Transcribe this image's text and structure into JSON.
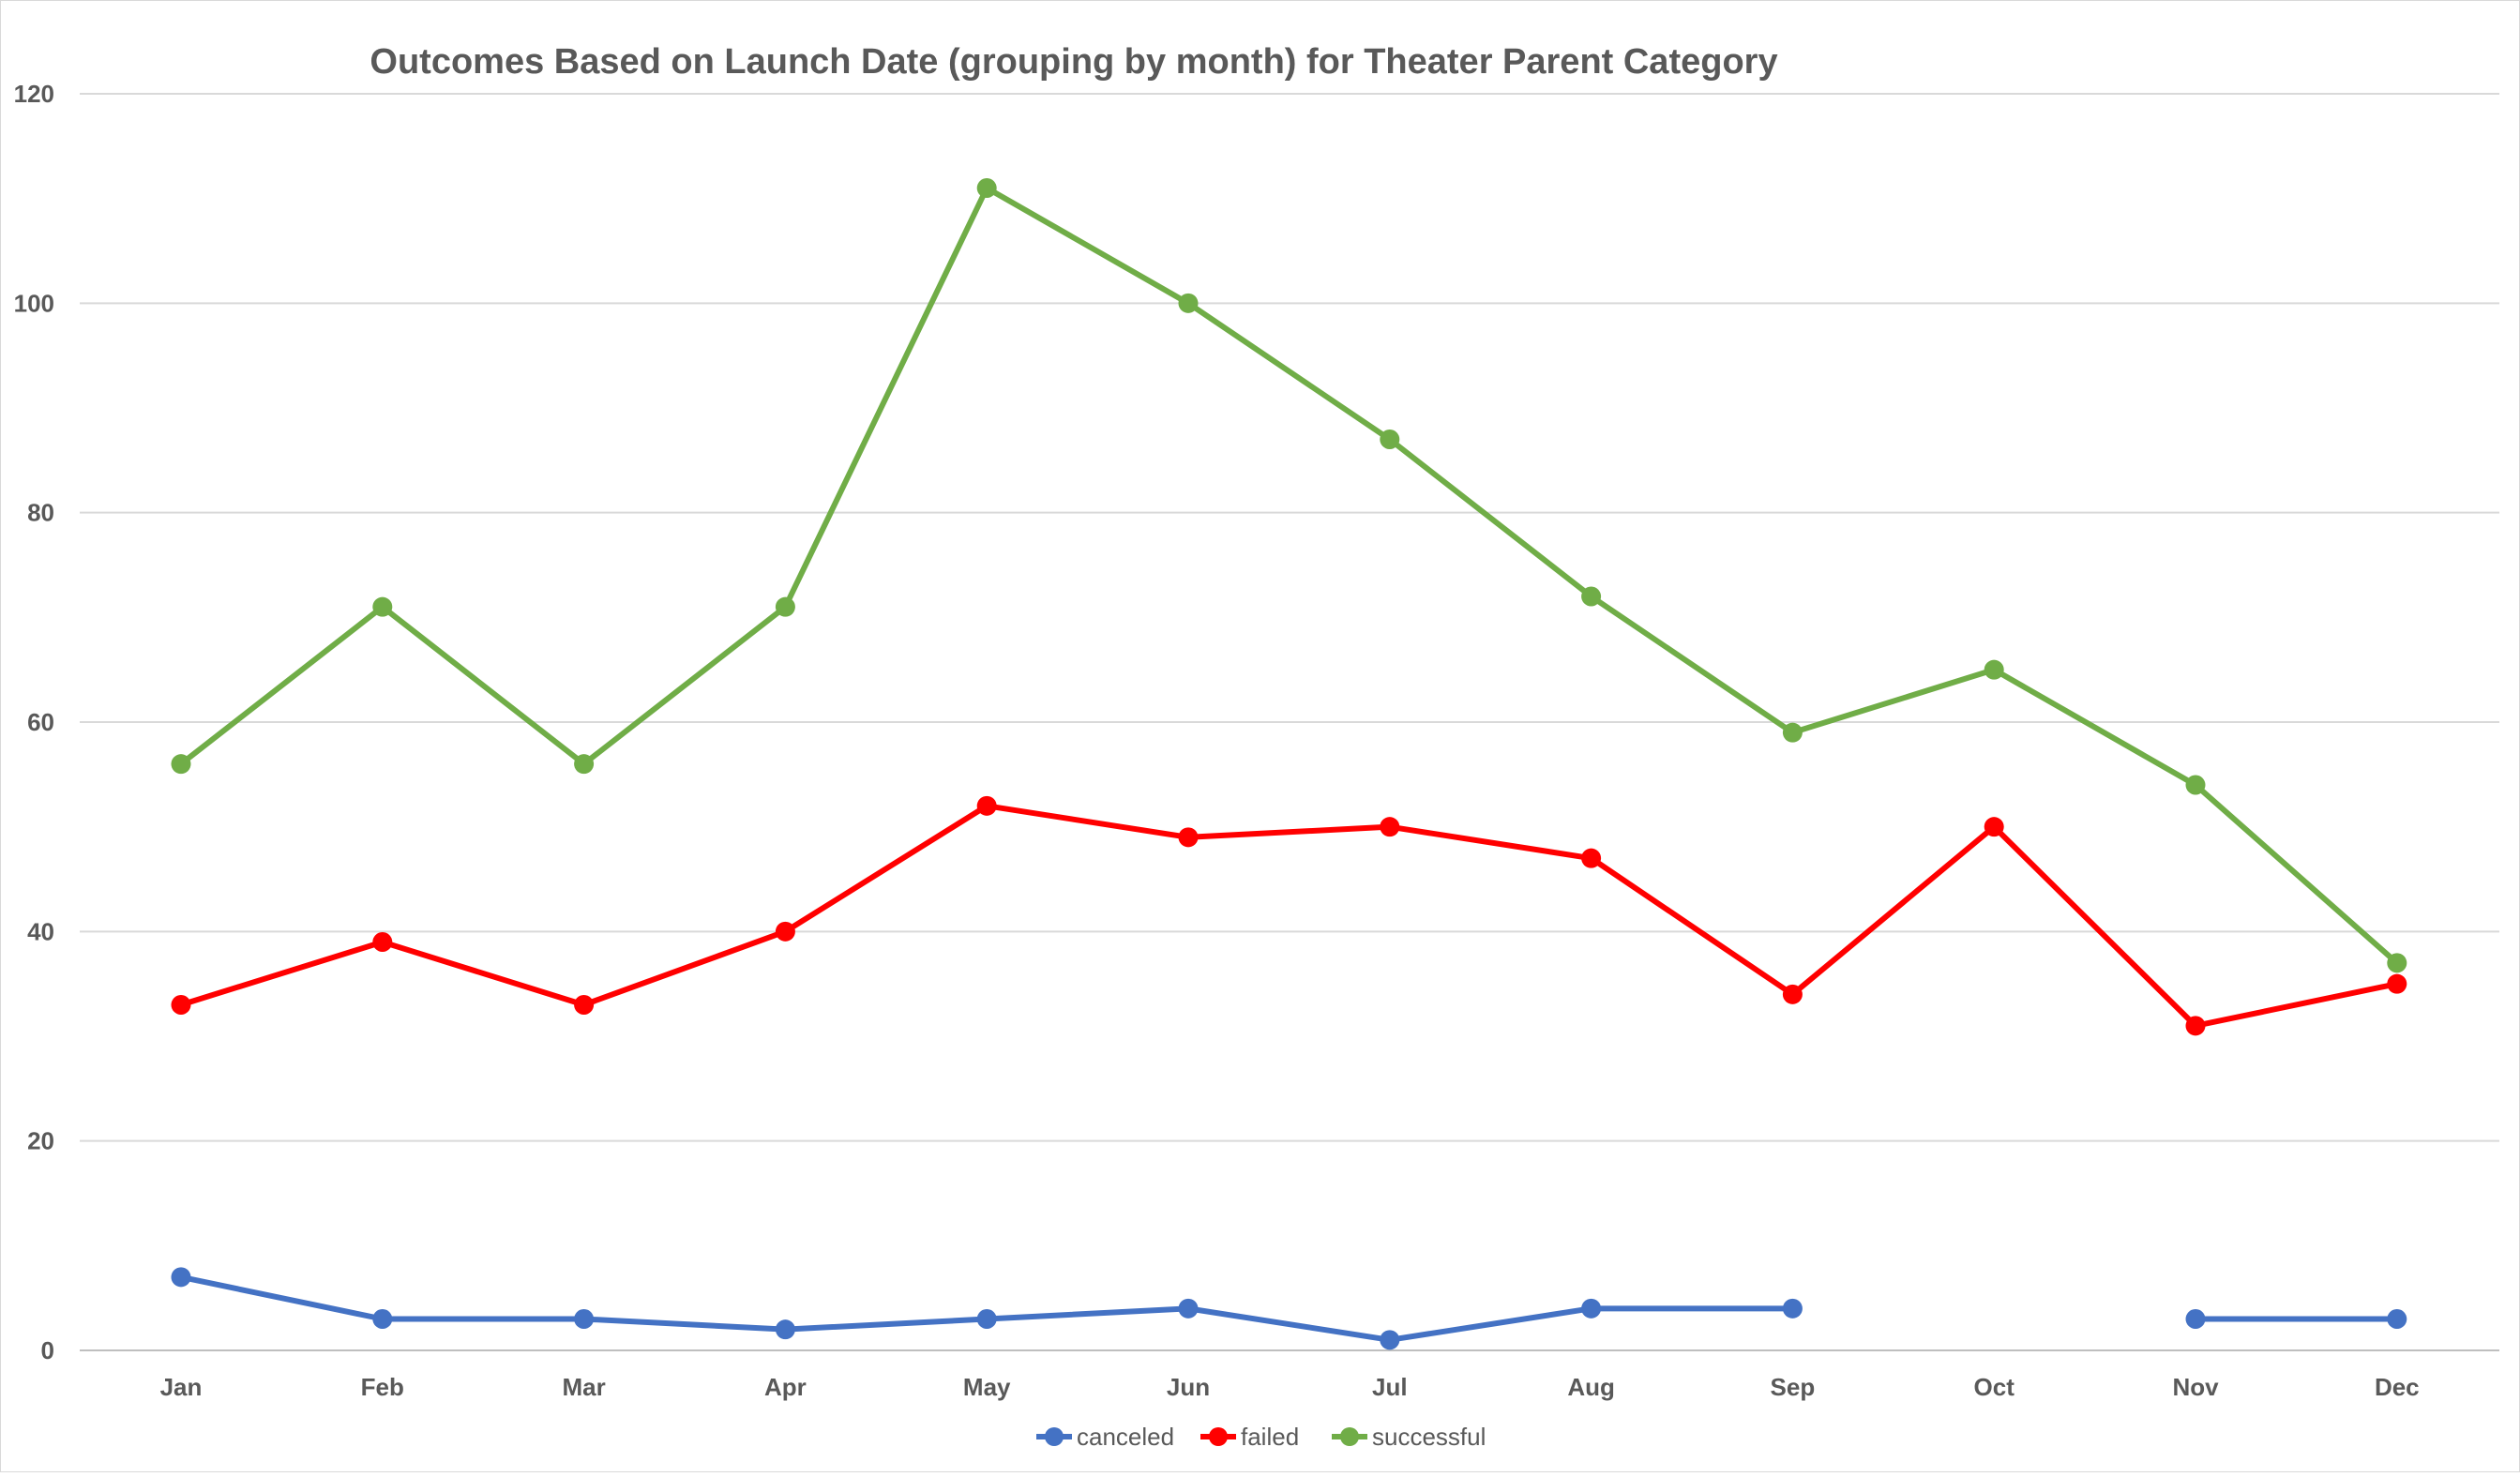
{
  "chart_data": {
    "type": "line",
    "title": "Outcomes Based on Launch Date (grouping by month) for Theater Parent Category",
    "xlabel": "",
    "ylabel": "",
    "categories": [
      "Jan",
      "Feb",
      "Mar",
      "Apr",
      "May",
      "Jun",
      "Jul",
      "Aug",
      "Sep",
      "Oct",
      "Nov",
      "Dec"
    ],
    "ylim": [
      0,
      120
    ],
    "yticks": [
      "0",
      "20",
      "40",
      "60",
      "80",
      "100",
      "120"
    ],
    "grid": true,
    "legend_position": "bottom",
    "series": [
      {
        "name": "canceled",
        "color": "#4472C4",
        "values": [
          7,
          3,
          3,
          2,
          3,
          4,
          1,
          4,
          4,
          null,
          3,
          3
        ]
      },
      {
        "name": "failed",
        "color": "#FF0000",
        "values": [
          33,
          39,
          33,
          40,
          52,
          49,
          50,
          47,
          34,
          50,
          31,
          35
        ]
      },
      {
        "name": "successful",
        "color": "#70AD47",
        "values": [
          56,
          71,
          56,
          71,
          111,
          100,
          87,
          72,
          59,
          65,
          54,
          37
        ]
      }
    ]
  }
}
